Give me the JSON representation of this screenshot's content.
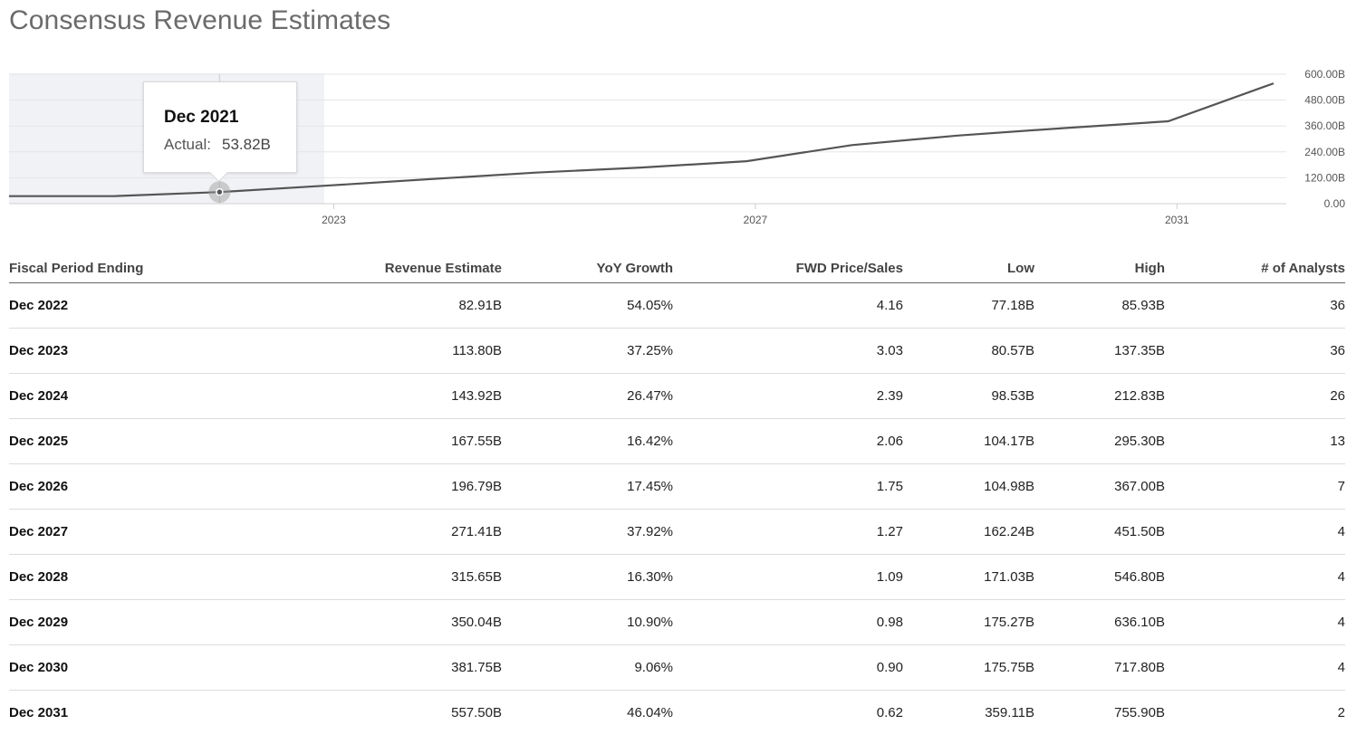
{
  "title": "Consensus Revenue Estimates",
  "tooltip": {
    "period": "Dec 2021",
    "label": "Actual:",
    "value": "53.82B"
  },
  "colors": {
    "line": "#555555",
    "highlight_band": "#f1f2f6",
    "grid": "#e5e5e5",
    "row_divider": "#dcdcdc"
  },
  "chart_data": {
    "type": "line",
    "title": "",
    "xlabel": "",
    "ylabel": "",
    "x": [
      "Dec 2020",
      "Dec 2021",
      "Dec 2022",
      "Dec 2023",
      "Dec 2024",
      "Dec 2025",
      "Dec 2026",
      "Dec 2027",
      "Dec 2028",
      "Dec 2029",
      "Dec 2030",
      "Dec 2031"
    ],
    "series": [
      {
        "values": [
          35,
          53.82,
          82.91,
          113.8,
          143.92,
          167.55,
          196.79,
          271.41,
          315.65,
          350.04,
          381.75,
          557.5
        ]
      }
    ],
    "ylim": [
      0,
      600
    ],
    "y_ticks": [
      "600.00B",
      "480.00B",
      "360.00B",
      "240.00B",
      "120.00B",
      "0.00"
    ],
    "y_tick_values": [
      600,
      480,
      360,
      240,
      120,
      0
    ],
    "x_ticks": [
      "2023",
      "2027",
      "2031"
    ],
    "x_tick_positions": [
      "Jan 2023",
      "Jan 2027",
      "Jan 2031"
    ],
    "highlight": "Dec 2021",
    "grid": true,
    "y_axis_side": "right"
  },
  "table": {
    "columns": [
      "Fiscal Period Ending",
      "Revenue Estimate",
      "YoY Growth",
      "FWD Price/Sales",
      "Low",
      "High",
      "# of Analysts"
    ],
    "rows": [
      [
        "Dec 2022",
        "82.91B",
        "54.05%",
        "4.16",
        "77.18B",
        "85.93B",
        "36"
      ],
      [
        "Dec 2023",
        "113.80B",
        "37.25%",
        "3.03",
        "80.57B",
        "137.35B",
        "36"
      ],
      [
        "Dec 2024",
        "143.92B",
        "26.47%",
        "2.39",
        "98.53B",
        "212.83B",
        "26"
      ],
      [
        "Dec 2025",
        "167.55B",
        "16.42%",
        "2.06",
        "104.17B",
        "295.30B",
        "13"
      ],
      [
        "Dec 2026",
        "196.79B",
        "17.45%",
        "1.75",
        "104.98B",
        "367.00B",
        "7"
      ],
      [
        "Dec 2027",
        "271.41B",
        "37.92%",
        "1.27",
        "162.24B",
        "451.50B",
        "4"
      ],
      [
        "Dec 2028",
        "315.65B",
        "16.30%",
        "1.09",
        "171.03B",
        "546.80B",
        "4"
      ],
      [
        "Dec 2029",
        "350.04B",
        "10.90%",
        "0.98",
        "175.27B",
        "636.10B",
        "4"
      ],
      [
        "Dec 2030",
        "381.75B",
        "9.06%",
        "0.90",
        "175.75B",
        "717.80B",
        "4"
      ],
      [
        "Dec 2031",
        "557.50B",
        "46.04%",
        "0.62",
        "359.11B",
        "755.90B",
        "2"
      ]
    ]
  }
}
